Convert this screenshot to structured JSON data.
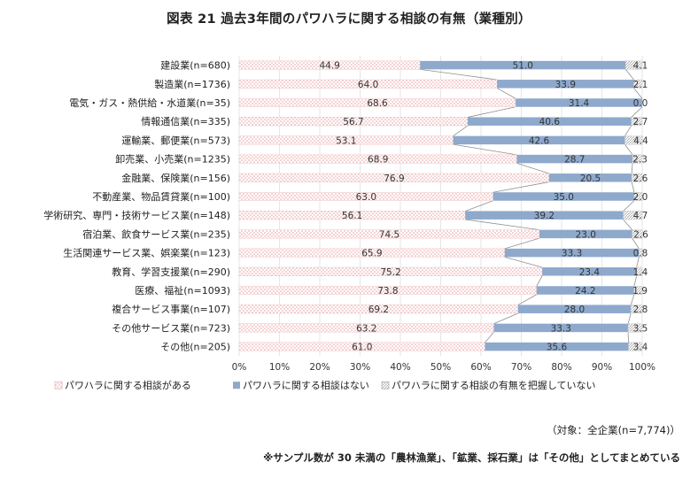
{
  "chart_data": {
    "type": "bar",
    "stacked": "percent",
    "orientation": "horizontal",
    "title": "図表 21 過去3年間のパワハラに関する相談の有無（業種別）",
    "categories": [
      "建設業(n=680)",
      "製造業(n=1736)",
      "電気・ガス・熱供給・水道業(n=35)",
      "情報通信業(n=335)",
      "運輸業、郵便業(n=573)",
      "卸売業、小売業(n=1235)",
      "金融業、保険業(n=156)",
      "不動産業、物品賃貸業(n=100)",
      "学術研究、専門・技術サービス業(n=148)",
      "宿泊業、飲食サービス業(n=235)",
      "生活関連サービス業、娯楽業(n=123)",
      "教育、学習支援業(n=290)",
      "医療、福祉(n=1093)",
      "複合サービス事業(n=107)",
      "その他サービス業(n=723)",
      "その他(n=205)"
    ],
    "series": [
      {
        "name": "パワハラに関する相談がある",
        "values": [
          44.9,
          64.0,
          68.6,
          56.7,
          53.1,
          68.9,
          76.9,
          63.0,
          56.1,
          74.5,
          65.9,
          75.2,
          73.8,
          69.2,
          63.2,
          61.0
        ]
      },
      {
        "name": "パワハラに関する相談はない",
        "values": [
          51.0,
          33.9,
          31.4,
          40.6,
          42.6,
          28.7,
          20.5,
          35.0,
          39.2,
          23.0,
          33.3,
          23.4,
          24.2,
          28.0,
          33.3,
          35.6
        ]
      },
      {
        "name": "パワハラに関する相談の有無を把握していない",
        "values": [
          4.1,
          2.1,
          0.0,
          2.7,
          4.4,
          2.3,
          2.6,
          2.0,
          4.7,
          2.6,
          0.8,
          1.4,
          1.9,
          2.8,
          3.5,
          3.4
        ]
      }
    ],
    "xlim": [
      0,
      100
    ],
    "x_ticks": [
      "0%",
      "10%",
      "20%",
      "30%",
      "40%",
      "50%",
      "60%",
      "70%",
      "80%",
      "90%",
      "100%"
    ],
    "legend_position": "bottom",
    "colors": {
      "s0_pattern": "#e8a0a4",
      "s1": "#8ea9cc",
      "s2_pattern": "#9a9a9a",
      "series_line": "#909090"
    }
  },
  "notes": {
    "target": "（対象：全企業(n=7,774)）",
    "sample": "※サンプル数が 30 未満の「農林漁業」、「鉱業、採石業」は「その他」としてまとめている"
  }
}
